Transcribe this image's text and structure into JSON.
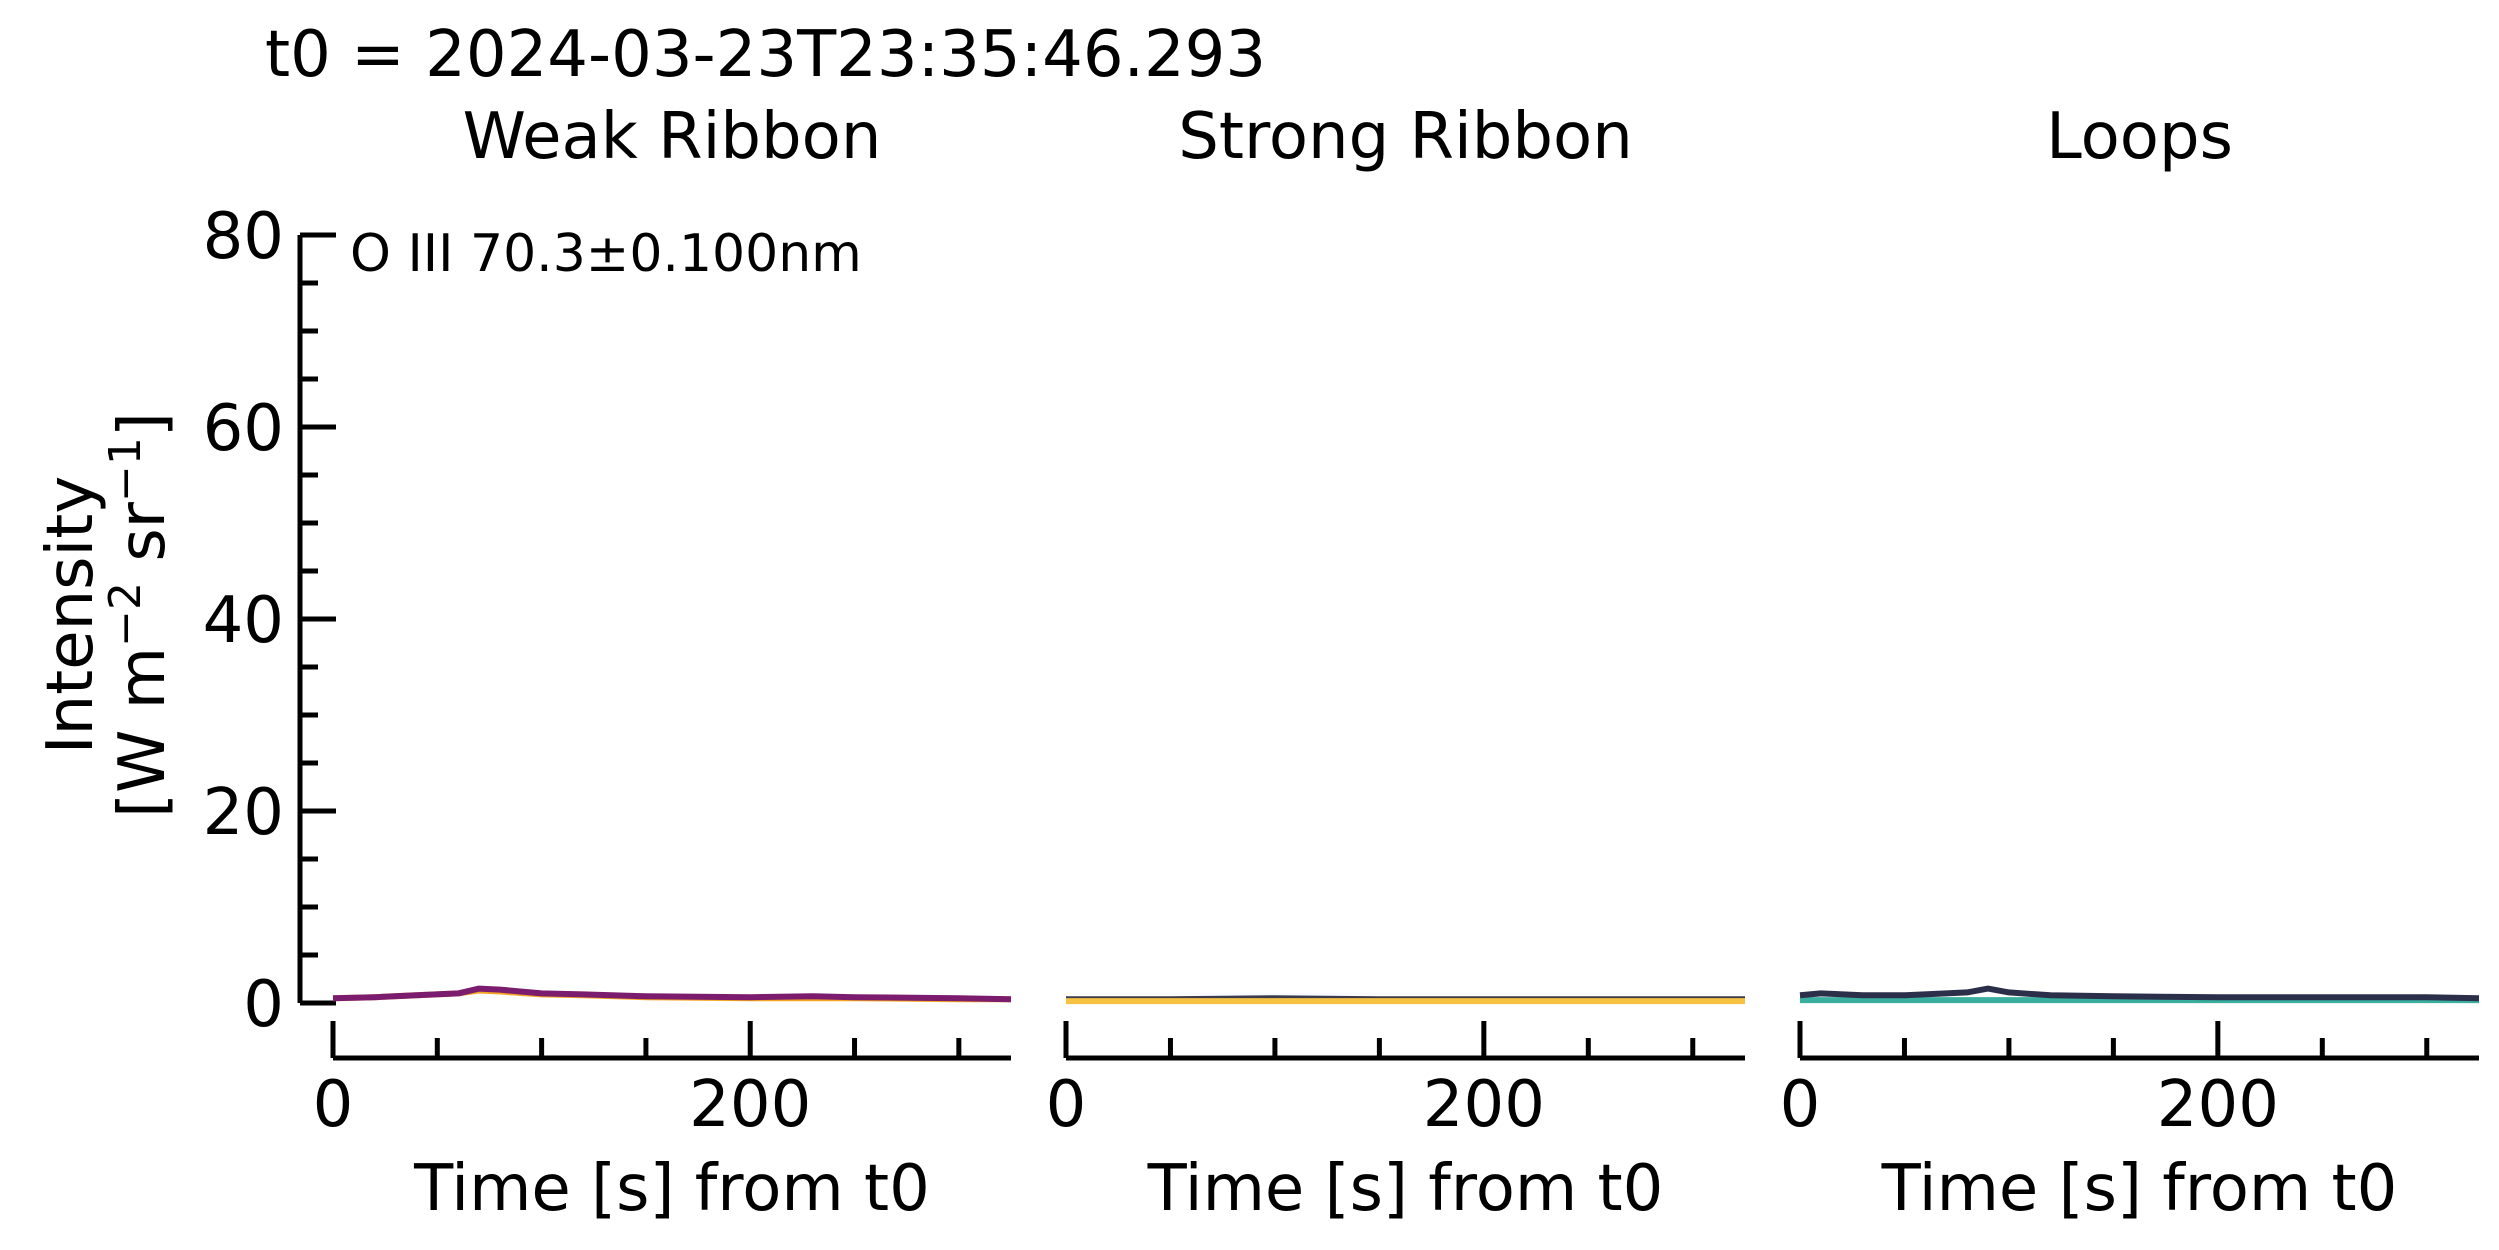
{
  "figure": {
    "suptitle": "t0 = 2024-03-23T23:35:46.293",
    "ylabel_line1": "Intensity",
    "ylabel_line2_main": "[W m",
    "ylabel_exp1": "−2",
    "ylabel_mid": " sr",
    "ylabel_exp2": "−1",
    "ylabel_close": "]",
    "annotation": "O III 70.3±0.100nm"
  },
  "chart_data": [
    {
      "type": "line",
      "title": "Weak Ribbon",
      "xlabel": "Time [s] from t0",
      "ylabel": "Intensity [W m−2 sr−1]",
      "xlim": [
        0,
        325
      ],
      "ylim": [
        0,
        80
      ],
      "xticks": [
        0,
        200
      ],
      "yticks": [
        0,
        20,
        40,
        60,
        80
      ],
      "series": [
        {
          "name": "series-orange",
          "color": "#f5a623",
          "x": [
            0,
            20,
            40,
            60,
            70,
            80,
            100,
            120,
            150,
            200,
            250,
            300,
            325
          ],
          "y": [
            0.5,
            0.6,
            0.8,
            1.0,
            1.3,
            1.2,
            0.9,
            0.8,
            0.6,
            0.5,
            0.5,
            0.4,
            0.4
          ]
        },
        {
          "name": "series-purple",
          "color": "#7b1c6e",
          "x": [
            0,
            20,
            40,
            60,
            70,
            80,
            100,
            120,
            150,
            200,
            230,
            250,
            300,
            325
          ],
          "y": [
            0.5,
            0.6,
            0.8,
            1.0,
            1.5,
            1.4,
            1.0,
            0.9,
            0.7,
            0.6,
            0.7,
            0.6,
            0.5,
            0.4
          ]
        }
      ]
    },
    {
      "type": "line",
      "title": "Strong Ribbon",
      "xlabel": "Time [s] from t0",
      "ylabel": "",
      "xlim": [
        0,
        325
      ],
      "ylim": [
        0,
        80
      ],
      "xticks": [
        0,
        200
      ],
      "yticks": [
        0,
        20,
        40,
        60,
        80
      ],
      "series": [
        {
          "name": "series-dark",
          "color": "#3b3b4f",
          "x": [
            0,
            50,
            100,
            150,
            200,
            250,
            300,
            325
          ],
          "y": [
            0.4,
            0.4,
            0.5,
            0.4,
            0.4,
            0.4,
            0.4,
            0.4
          ]
        },
        {
          "name": "series-yellow",
          "color": "#f5c242",
          "x": [
            0,
            50,
            100,
            150,
            200,
            250,
            300,
            325
          ],
          "y": [
            0.2,
            0.2,
            0.2,
            0.2,
            0.2,
            0.2,
            0.2,
            0.2
          ]
        }
      ]
    },
    {
      "type": "line",
      "title": "Loops",
      "xlabel": "Time [s] from t0",
      "ylabel": "",
      "xlim": [
        0,
        325
      ],
      "ylim": [
        0,
        80
      ],
      "xticks": [
        0,
        200
      ],
      "yticks": [
        0,
        20,
        40,
        60,
        80
      ],
      "series": [
        {
          "name": "series-teal",
          "color": "#3aaf9f",
          "x": [
            0,
            50,
            100,
            150,
            200,
            250,
            300,
            325
          ],
          "y": [
            0.3,
            0.3,
            0.3,
            0.3,
            0.3,
            0.3,
            0.3,
            0.3
          ]
        },
        {
          "name": "series-darkblue",
          "color": "#2c2f4a",
          "x": [
            0,
            10,
            30,
            50,
            70,
            80,
            90,
            100,
            120,
            150,
            200,
            250,
            300,
            325
          ],
          "y": [
            0.8,
            1.0,
            0.8,
            0.8,
            1.0,
            1.1,
            1.5,
            1.1,
            0.8,
            0.7,
            0.6,
            0.6,
            0.6,
            0.5
          ]
        }
      ]
    }
  ]
}
